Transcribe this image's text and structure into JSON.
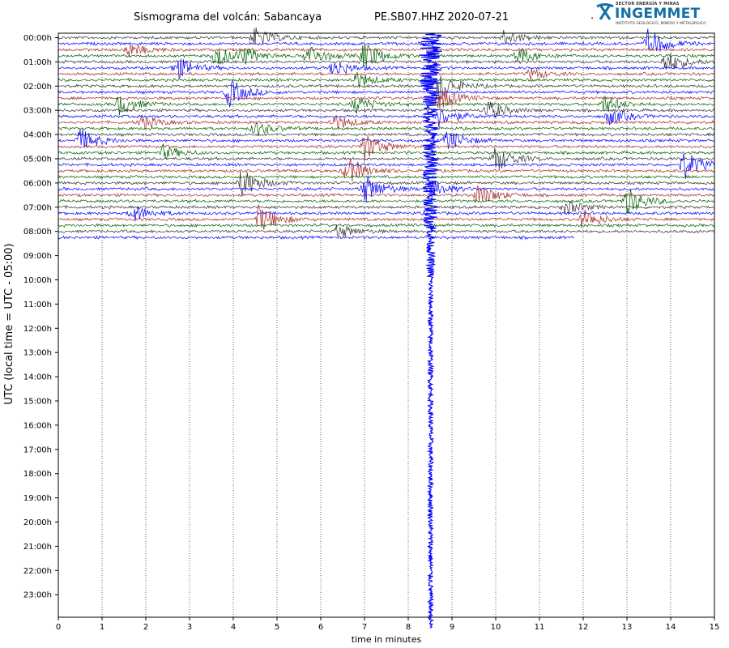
{
  "header": {
    "title_left": "Sismograma del volcán: Sabancaya",
    "title_right": "PE.SB07.HHZ 2020-07-21",
    "dot": "."
  },
  "logo": {
    "top_text": "SECTOR ENERGÍA Y MINAS",
    "name": "INGEMMET",
    "sub_text": "INSTITUTO GEOLÓGICO, MINERO Y METALÚRGICO",
    "color": "#1570a6",
    "icon": "pickaxe-icon"
  },
  "chart_data": {
    "type": "line",
    "title": "",
    "xlabel": "time in minutes",
    "ylabel": "UTC (local time = UTC - 05:00)",
    "xlim": [
      0,
      15
    ],
    "x_ticks": [
      0,
      1,
      2,
      3,
      4,
      5,
      6,
      7,
      8,
      9,
      10,
      11,
      12,
      13,
      14,
      15
    ],
    "y_tick_labels": [
      "00:00h",
      "01:00h",
      "02:00h",
      "03:00h",
      "04:00h",
      "05:00h",
      "06:00h",
      "07:00h",
      "08:00h",
      "09:00h",
      "10:00h",
      "11:00h",
      "12:00h",
      "13:00h",
      "14:00h",
      "15:00h",
      "16:00h",
      "17:00h",
      "18:00h",
      "19:00h",
      "20:00h",
      "21:00h",
      "22:00h",
      "23:00h"
    ],
    "minutes_per_trace": 15,
    "trace_colors": [
      "#333333",
      "#0000ff",
      "#a52a2a",
      "#006400"
    ],
    "recorded_until": "08:15h",
    "grid": "vertical dotted lines at each minute",
    "events": [
      {
        "hour": 0.0,
        "minute": 4.5,
        "amp": 0.7
      },
      {
        "hour": 0.0,
        "minute": 10.2,
        "amp": 0.5
      },
      {
        "hour": 0.25,
        "minute": 13.5,
        "amp": 1.0
      },
      {
        "hour": 0.5,
        "minute": 1.6,
        "amp": 0.5
      },
      {
        "hour": 0.75,
        "minute": 3.6,
        "amp": 0.8
      },
      {
        "hour": 0.75,
        "minute": 4.2,
        "amp": 0.7
      },
      {
        "hour": 0.75,
        "minute": 5.7,
        "amp": 0.8
      },
      {
        "hour": 0.75,
        "minute": 7.0,
        "amp": 1.0
      },
      {
        "hour": 0.75,
        "minute": 10.5,
        "amp": 0.6
      },
      {
        "hour": 1.0,
        "minute": 13.9,
        "amp": 0.8
      },
      {
        "hour": 1.25,
        "minute": 2.7,
        "amp": 0.8
      },
      {
        "hour": 1.25,
        "minute": 6.3,
        "amp": 0.6
      },
      {
        "hour": 1.5,
        "minute": 10.8,
        "amp": 0.4
      },
      {
        "hour": 1.75,
        "minute": 6.8,
        "amp": 0.6
      },
      {
        "hour": 2.0,
        "minute": 8.7,
        "amp": 1.0
      },
      {
        "hour": 2.25,
        "minute": 3.9,
        "amp": 1.0
      },
      {
        "hour": 2.5,
        "minute": 8.7,
        "amp": 0.8
      },
      {
        "hour": 2.75,
        "minute": 1.4,
        "amp": 0.7
      },
      {
        "hour": 2.75,
        "minute": 6.8,
        "amp": 0.6
      },
      {
        "hour": 2.75,
        "minute": 12.5,
        "amp": 0.6
      },
      {
        "hour": 3.0,
        "minute": 9.8,
        "amp": 0.7
      },
      {
        "hour": 3.25,
        "minute": 8.7,
        "amp": 0.7
      },
      {
        "hour": 3.25,
        "minute": 12.6,
        "amp": 0.6
      },
      {
        "hour": 3.5,
        "minute": 1.9,
        "amp": 0.5
      },
      {
        "hour": 3.5,
        "minute": 6.3,
        "amp": 0.6
      },
      {
        "hour": 3.75,
        "minute": 4.5,
        "amp": 0.5
      },
      {
        "hour": 4.25,
        "minute": 0.5,
        "amp": 0.8
      },
      {
        "hour": 4.25,
        "minute": 8.9,
        "amp": 0.7
      },
      {
        "hour": 4.5,
        "minute": 7.0,
        "amp": 1.0
      },
      {
        "hour": 4.75,
        "minute": 2.4,
        "amp": 0.5
      },
      {
        "hour": 5.0,
        "minute": 10.0,
        "amp": 0.9
      },
      {
        "hour": 5.25,
        "minute": 14.3,
        "amp": 1.0
      },
      {
        "hour": 5.5,
        "minute": 6.6,
        "amp": 1.0
      },
      {
        "hour": 6.0,
        "minute": 4.2,
        "amp": 1.0
      },
      {
        "hour": 6.25,
        "minute": 7.0,
        "amp": 1.0
      },
      {
        "hour": 6.25,
        "minute": 8.5,
        "amp": 0.7
      },
      {
        "hour": 6.5,
        "minute": 9.6,
        "amp": 0.8
      },
      {
        "hour": 6.75,
        "minute": 13.0,
        "amp": 1.0
      },
      {
        "hour": 7.0,
        "minute": 11.6,
        "amp": 0.5
      },
      {
        "hour": 7.25,
        "minute": 1.7,
        "amp": 0.6
      },
      {
        "hour": 7.5,
        "minute": 4.6,
        "amp": 1.0
      },
      {
        "hour": 7.5,
        "minute": 12.0,
        "amp": 0.7
      },
      {
        "hour": 8.0,
        "minute": 6.4,
        "amp": 0.5
      }
    ],
    "large_event": {
      "hour": 1.25,
      "minute": 8.4,
      "extends_to_hour": 23.5
    }
  }
}
